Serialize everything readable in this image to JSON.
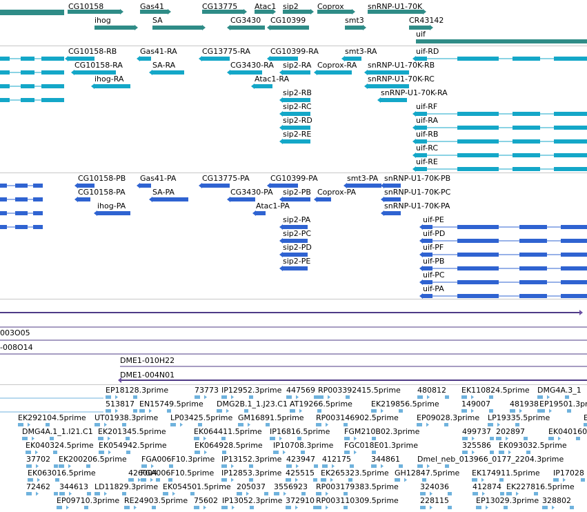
{
  "colors": {
    "gene": "#2f8c87",
    "transcript_a": "#14a7c8",
    "transcript_b": "#2f63d1",
    "clone": "#6b4fa3",
    "clone_line": "#4e3a86",
    "read": "#6fb2dd",
    "separator": "#c7c7c7"
  },
  "tracks": {
    "genes": [
      "CG10158",
      "Gas41",
      "CG13775",
      "Atac1",
      "sip2",
      "Coprox",
      "snRNP-U1-70K",
      "ihog",
      "SA",
      "CG3430",
      "CG10399",
      "smt3",
      "CR43142",
      "uif"
    ],
    "transcripts_a": [
      "CG10158-RB",
      "Gas41-RA",
      "CG13775-RA",
      "CG10399-RA",
      "smt3-RA",
      "uif-RD",
      "CG10158-RA",
      "SA-RA",
      "CG3430-RA",
      "sip2-RA",
      "Coprox-RA",
      "snRNP-U1-70K-RB",
      "ihog-RA",
      "Atac1-RA",
      "snRNP-U1-70K-RC",
      "snRNP-U1-70K-RA",
      "sip2-RB",
      "sip2-RC",
      "sip2-RD",
      "sip2-RE",
      "uif-RF",
      "uif-RA",
      "uif-RB",
      "uif-RC",
      "uif-RE"
    ],
    "transcripts_b": [
      "CG10158-PB",
      "Gas41-PA",
      "CG13775-PA",
      "CG10399-PA",
      "smt3-PA",
      "snRNP-U1-70K-PB",
      "CG10158-PA",
      "SA-PA",
      "CG3430-PA",
      "sip2-PB",
      "Coprox-PA",
      "snRNP-U1-70K-PC",
      "ihog-PA",
      "Atac1-PA",
      "snRNP-U1-70K-PA",
      "sip2-PA",
      "sip2-PC",
      "sip2-PD",
      "sip2-PE",
      "uif-PE",
      "uif-PD",
      "uif-PF",
      "uif-PB",
      "uif-PC",
      "uif-PA"
    ],
    "clones": [
      "003O05",
      "-008O14",
      "DME1-010H22",
      "DME1-004N01"
    ],
    "reads": [
      "EP18128.3prime",
      "73773",
      "IP12952.3prime",
      "447569",
      "RP003392415.5prime",
      "480812",
      "EK110824.5prime",
      "DMG4A.3_1",
      "513817",
      "EN15749.5prime",
      "DMG2B.1_1.J23.C1",
      "AT19266.5prime",
      "EK219856.5prime",
      "149007",
      "481938",
      "EP19501.3prime",
      "EK292104.5prime",
      "UT01938.3prime",
      "LP03425.5prime",
      "GM16891.5prime",
      "RP003146902.5prime",
      "EP09028.3prime",
      "LP19335.5prime",
      "E",
      "DMG4A.1_1.I21.C1",
      "EK201345.5prime",
      "EK064411.5prime",
      "IP16816.5prime",
      "FGM210B02.3prime",
      "499737",
      "202897",
      "EK040160.5",
      "EK040324.5prime",
      "EK054942.5prime",
      "EK064928.5prime",
      "IP10708.3prime",
      "FGC018E01.3prime",
      "325586",
      "EK093032.5prime",
      "37702",
      "EK200206.5prime",
      "FGA006F10.3prime",
      "IP13152.3prime",
      "423947",
      "412175",
      "344861",
      "Dmel_neb_013966_0177_2204.3prime",
      "EK063016.5prime",
      "426004",
      "FGA006F10.5prime",
      "IP12853.3prime",
      "425515",
      "EK265323.5prime",
      "GH12847.5prime",
      "EK174911.5prime",
      "IP17028",
      "72462",
      "344613",
      "LD11829.3prime",
      "EK054501.5prime",
      "205037",
      "3556923",
      "RP003179383.5prime",
      "324036",
      "412874",
      "EK227816.5prime",
      "EP09710.3prime",
      "RE24903.5prime",
      "75602",
      "IP13052.3prime",
      "372910",
      "RP003110309.5prime",
      "228115",
      "EP13029.3prime",
      "328802"
    ]
  }
}
